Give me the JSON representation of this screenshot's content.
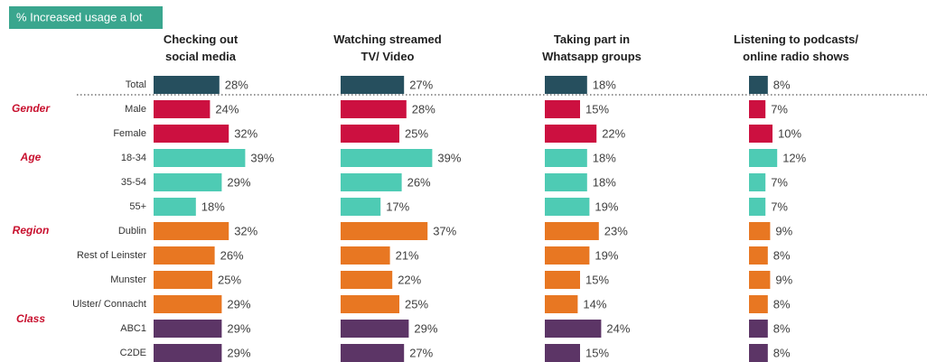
{
  "tag": "% Increased usage a lot",
  "categories": [
    "Total",
    "Male",
    "Female",
    "18-34",
    "35-54",
    "55+",
    "Dublin",
    "Rest of Leinster",
    "Munster",
    "Ulster/ Connacht",
    "ABC1",
    "C2DE"
  ],
  "group_labels": [
    null,
    "Gender",
    null,
    "Age",
    null,
    null,
    "Region",
    null,
    null,
    null,
    "Class",
    null
  ],
  "colors": [
    "#264f5e",
    "#cc1040",
    "#cc1040",
    "#4ecbb4",
    "#4ecbb4",
    "#4ecbb4",
    "#e87722",
    "#e87722",
    "#e87722",
    "#e87722",
    "#5c3566",
    "#5c3566"
  ],
  "chart_data": [
    {
      "type": "bar",
      "title": [
        "Checking out",
        "social media"
      ],
      "values": [
        28,
        24,
        32,
        39,
        29,
        18,
        32,
        26,
        25,
        29,
        29,
        29
      ],
      "value_labels": [
        "28%",
        "24%",
        "32%",
        "39%",
        "29%",
        "18%",
        "32%",
        "26%",
        "25%",
        "29%",
        "29%",
        "29%"
      ]
    },
    {
      "type": "bar",
      "title": [
        "Watching streamed",
        "TV/ Video"
      ],
      "values": [
        27,
        28,
        25,
        39,
        26,
        17,
        37,
        21,
        22,
        25,
        29,
        27
      ],
      "value_labels": [
        "27%",
        "28%",
        "25%",
        "39%",
        "26%",
        "17%",
        "37%",
        "21%",
        "22%",
        "25%",
        "29%",
        "27%"
      ]
    },
    {
      "type": "bar",
      "title": [
        "Taking part in",
        "Whatsapp groups"
      ],
      "values": [
        18,
        15,
        22,
        18,
        18,
        19,
        23,
        19,
        15,
        14,
        24,
        15
      ],
      "value_labels": [
        "18%",
        "15%",
        "22%",
        "18%",
        "18%",
        "19%",
        "23%",
        "19%",
        "15%",
        "14%",
        "24%",
        "15%"
      ]
    },
    {
      "type": "bar",
      "title": [
        "Listening to podcasts/",
        "online radio shows"
      ],
      "values": [
        8,
        7,
        10,
        12,
        7,
        7,
        9,
        8,
        9,
        8,
        8,
        8
      ],
      "value_labels": [
        "8%",
        "7%",
        "10%",
        "12%",
        "7%",
        "7%",
        "9%",
        "8%",
        "9%",
        "8%",
        "8%",
        "8%"
      ]
    }
  ]
}
